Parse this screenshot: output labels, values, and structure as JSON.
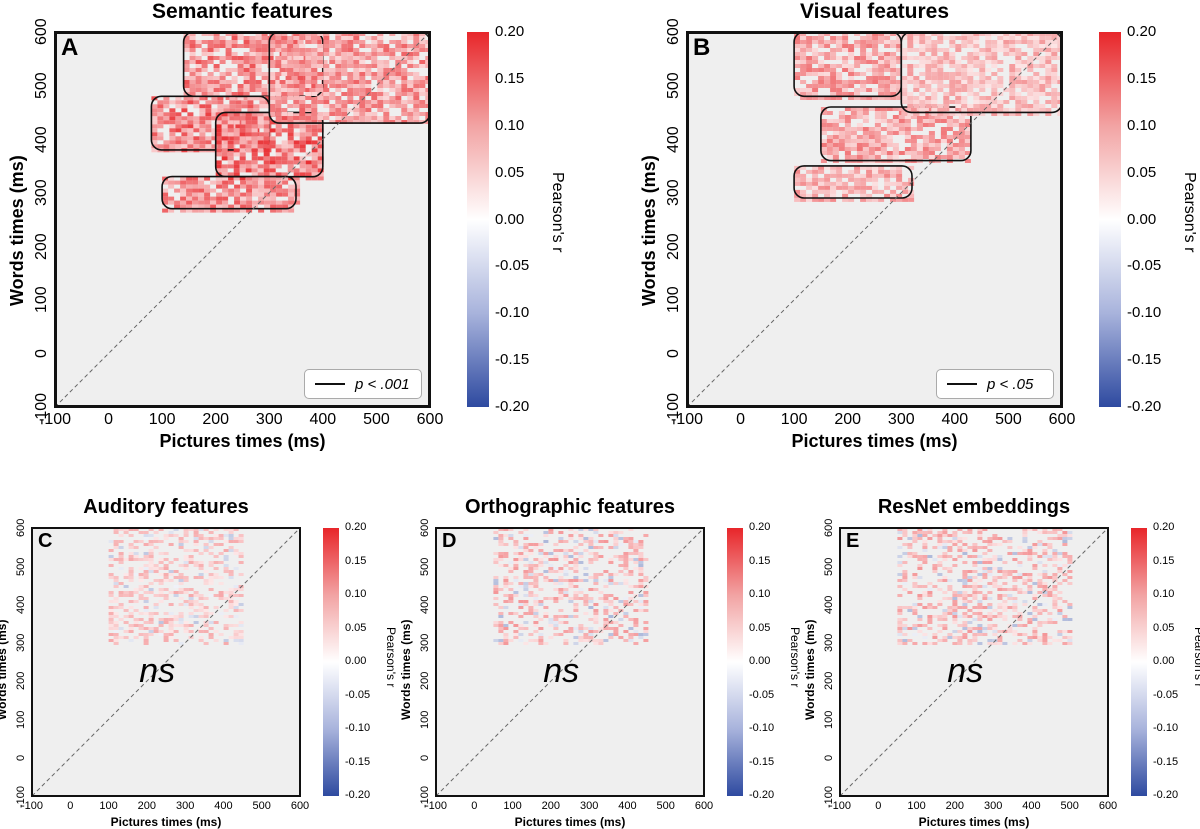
{
  "colorbar": {
    "ticks": [
      "0.20",
      "0.15",
      "0.10",
      "0.05",
      "0.00",
      "-0.05",
      "-0.10",
      "-0.15",
      "-0.20"
    ],
    "label": "Pearson's r",
    "colors": [
      "#e8262a",
      "#ffffff",
      "#2e4aa0"
    ]
  },
  "chart_data": [
    {
      "type": "heatmap",
      "letter": "A",
      "title": "Semantic features",
      "xlabel": "Pictures times (ms)",
      "ylabel": "Words times (ms)",
      "xlim": [
        -100,
        600
      ],
      "ylim": [
        -100,
        600
      ],
      "xticks": [
        "-100",
        "0",
        "100",
        "200",
        "300",
        "400",
        "500",
        "600"
      ],
      "yticks": [
        "-100",
        "0",
        "100",
        "200",
        "300",
        "400",
        "500",
        "600"
      ],
      "clim": [
        -0.2,
        0.2
      ],
      "legend": "p < .001",
      "significant": true,
      "ns_label": "",
      "clusters": [
        {
          "x": [
            140,
            400
          ],
          "y": [
            480,
            600
          ],
          "r": 0.1
        },
        {
          "x": [
            80,
            300
          ],
          "y": [
            380,
            480
          ],
          "r": 0.11
        },
        {
          "x": [
            200,
            400
          ],
          "y": [
            330,
            450
          ],
          "r": 0.12
        },
        {
          "x": [
            100,
            350
          ],
          "y": [
            270,
            330
          ],
          "r": 0.1
        },
        {
          "x": [
            300,
            600
          ],
          "y": [
            430,
            600
          ],
          "r": 0.09
        }
      ]
    },
    {
      "type": "heatmap",
      "letter": "B",
      "title": "Visual features",
      "xlabel": "Pictures times (ms)",
      "ylabel": "Words times (ms)",
      "xlim": [
        -100,
        600
      ],
      "ylim": [
        -100,
        600
      ],
      "xticks": [
        "-100",
        "0",
        "100",
        "200",
        "300",
        "400",
        "500",
        "600"
      ],
      "yticks": [
        "-100",
        "0",
        "100",
        "200",
        "300",
        "400",
        "500",
        "600"
      ],
      "clim": [
        -0.2,
        0.2
      ],
      "legend": "p < .05",
      "significant": true,
      "ns_label": "",
      "clusters": [
        {
          "x": [
            100,
            300
          ],
          "y": [
            480,
            600
          ],
          "r": 0.08
        },
        {
          "x": [
            150,
            430
          ],
          "y": [
            360,
            460
          ],
          "r": 0.08
        },
        {
          "x": [
            100,
            320
          ],
          "y": [
            290,
            350
          ],
          "r": 0.07
        },
        {
          "x": [
            300,
            600
          ],
          "y": [
            450,
            600
          ],
          "r": 0.06
        }
      ]
    },
    {
      "type": "heatmap",
      "letter": "C",
      "title": "Auditory features",
      "xlabel": "Pictures times (ms)",
      "ylabel": "Words times (ms)",
      "xlim": [
        -100,
        600
      ],
      "ylim": [
        -100,
        600
      ],
      "xticks": [
        "-100",
        "0",
        "100",
        "200",
        "300",
        "400",
        "500",
        "600"
      ],
      "yticks": [
        "-100",
        "0",
        "100",
        "200",
        "300",
        "400",
        "500",
        "600"
      ],
      "clim": [
        -0.2,
        0.2
      ],
      "legend": "",
      "significant": false,
      "ns_label": "ns",
      "clusters": [
        {
          "x": [
            100,
            450
          ],
          "y": [
            300,
            600
          ],
          "r": 0.05
        }
      ]
    },
    {
      "type": "heatmap",
      "letter": "D",
      "title": "Orthographic features",
      "xlabel": "Pictures times (ms)",
      "ylabel": "Words times (ms)",
      "xlim": [
        -100,
        600
      ],
      "ylim": [
        -100,
        600
      ],
      "xticks": [
        "-100",
        "0",
        "100",
        "200",
        "300",
        "400",
        "500",
        "600"
      ],
      "yticks": [
        "-100",
        "0",
        "100",
        "200",
        "300",
        "400",
        "500",
        "600"
      ],
      "clim": [
        -0.2,
        0.2
      ],
      "legend": "",
      "significant": false,
      "ns_label": "ns",
      "clusters": [
        {
          "x": [
            50,
            450
          ],
          "y": [
            300,
            600
          ],
          "r": 0.06
        }
      ]
    },
    {
      "type": "heatmap",
      "letter": "E",
      "title": "ResNet embeddings",
      "xlabel": "Pictures times (ms)",
      "ylabel": "Words times (ms)",
      "xlim": [
        -100,
        600
      ],
      "ylim": [
        -100,
        600
      ],
      "xticks": [
        "-100",
        "0",
        "100",
        "200",
        "300",
        "400",
        "500",
        "600"
      ],
      "yticks": [
        "-100",
        "0",
        "100",
        "200",
        "300",
        "400",
        "500",
        "600"
      ],
      "clim": [
        -0.2,
        0.2
      ],
      "legend": "",
      "significant": false,
      "ns_label": "ns",
      "clusters": [
        {
          "x": [
            50,
            500
          ],
          "y": [
            300,
            600
          ],
          "r": 0.06
        }
      ]
    }
  ]
}
